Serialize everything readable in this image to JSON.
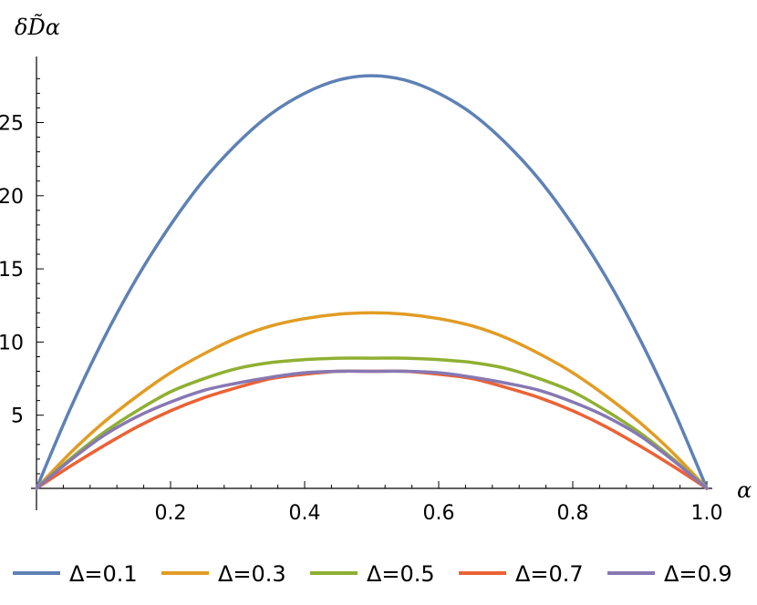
{
  "chart_data": {
    "type": "line",
    "title": "",
    "xlabel": "α",
    "ylabel": "δD̃α",
    "xlim": [
      0,
      1
    ],
    "ylim": [
      0,
      29
    ],
    "x_ticks": [
      0.2,
      0.4,
      0.6,
      0.8,
      1.0
    ],
    "x_tick_labels": [
      "0.2",
      "0.4",
      "0.6",
      "0.8",
      "1.0"
    ],
    "y_ticks": [
      5,
      10,
      15,
      20,
      25
    ],
    "y_tick_labels": [
      "5",
      "10",
      "15",
      "20",
      "25"
    ],
    "grid": false,
    "legend_position": "bottom",
    "x": [
      0,
      0.05,
      0.1,
      0.15,
      0.2,
      0.25,
      0.3,
      0.35,
      0.4,
      0.45,
      0.5,
      0.55,
      0.6,
      0.65,
      0.7,
      0.75,
      0.8,
      0.85,
      0.9,
      0.95,
      1.0
    ],
    "series": [
      {
        "name": "Δ=0.1",
        "color": "#5E81B5",
        "values": [
          0,
          5.4,
          10.2,
          14.4,
          18.0,
          21.1,
          23.6,
          25.6,
          27.0,
          27.9,
          28.2,
          27.9,
          27.0,
          25.6,
          23.6,
          21.1,
          18.0,
          14.4,
          10.2,
          5.4,
          0
        ]
      },
      {
        "name": "Δ=0.3",
        "color": "#E19C24",
        "values": [
          0,
          2.4,
          4.5,
          6.3,
          7.9,
          9.2,
          10.3,
          11.1,
          11.6,
          11.9,
          12.0,
          11.9,
          11.6,
          11.1,
          10.3,
          9.2,
          7.9,
          6.3,
          4.5,
          2.4,
          0
        ]
      },
      {
        "name": "Δ=0.5",
        "color": "#8FB032",
        "values": [
          0,
          2.0,
          3.8,
          5.3,
          6.6,
          7.5,
          8.2,
          8.6,
          8.8,
          8.9,
          8.9,
          8.9,
          8.8,
          8.6,
          8.2,
          7.5,
          6.6,
          5.3,
          3.8,
          2.0,
          0
        ]
      },
      {
        "name": "Δ=0.7",
        "color": "#EB6235",
        "values": [
          0,
          1.5,
          2.9,
          4.2,
          5.3,
          6.2,
          6.9,
          7.5,
          7.8,
          8.0,
          8.0,
          8.0,
          7.8,
          7.5,
          6.9,
          6.2,
          5.3,
          4.2,
          2.9,
          1.5,
          0
        ]
      },
      {
        "name": "Δ=0.9",
        "color": "#8778B3",
        "values": [
          0,
          1.9,
          3.6,
          4.9,
          5.9,
          6.7,
          7.2,
          7.6,
          7.9,
          8.0,
          8.0,
          8.0,
          7.9,
          7.6,
          7.2,
          6.7,
          5.9,
          4.9,
          3.6,
          1.9,
          0
        ]
      }
    ]
  }
}
